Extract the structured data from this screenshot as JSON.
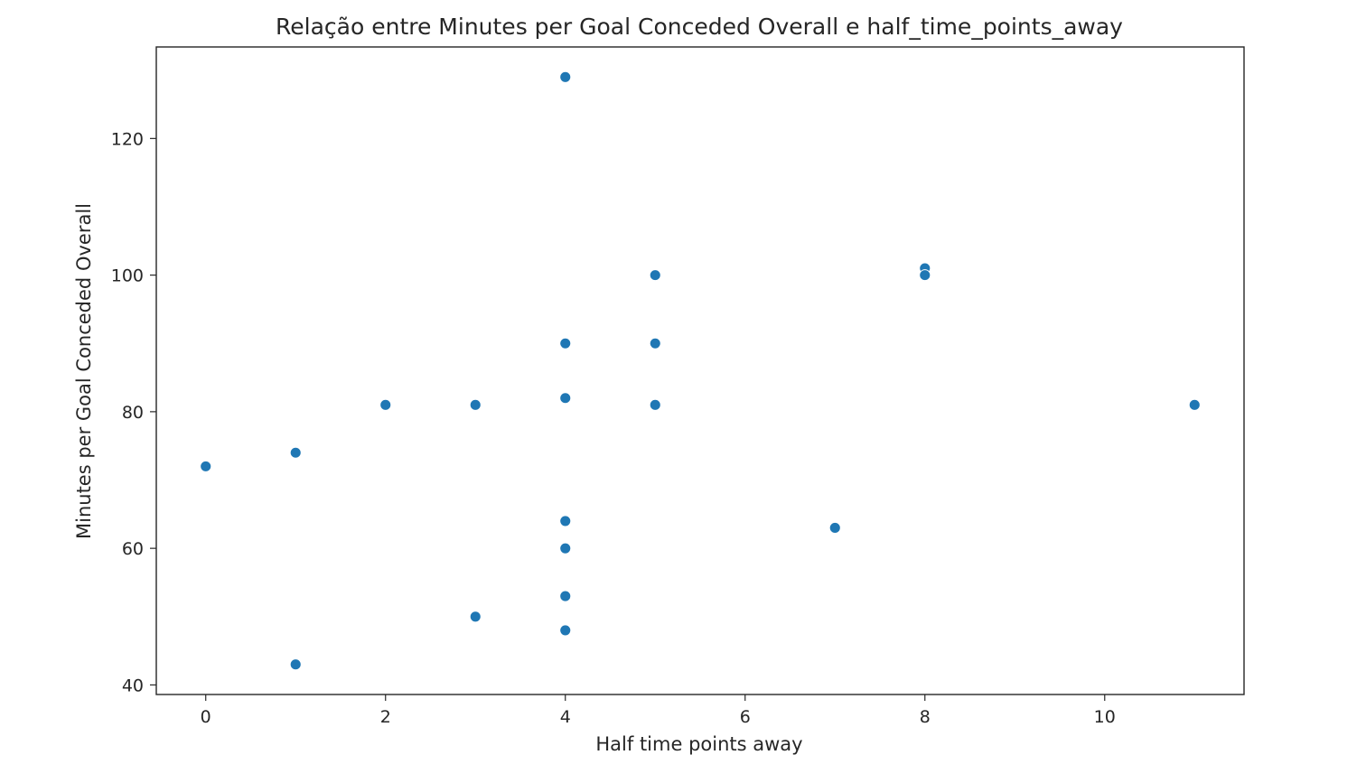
{
  "chart_data": {
    "type": "scatter",
    "title": "Relação entre Minutes per Goal Conceded Overall e half_time_points_away",
    "xlabel": "Half time points away",
    "ylabel": "Minutes per Goal Conceded Overall",
    "xlim": [
      -0.55,
      11.55
    ],
    "ylim": [
      38.6,
      133.4
    ],
    "xticks": [
      0,
      2,
      4,
      6,
      8,
      10
    ],
    "yticks": [
      40,
      60,
      80,
      100,
      120
    ],
    "grid": false,
    "marker_color": "#1f77b4",
    "points": [
      {
        "x": 0,
        "y": 72
      },
      {
        "x": 1,
        "y": 74
      },
      {
        "x": 1,
        "y": 43
      },
      {
        "x": 2,
        "y": 81
      },
      {
        "x": 3,
        "y": 81
      },
      {
        "x": 3,
        "y": 50
      },
      {
        "x": 4,
        "y": 129
      },
      {
        "x": 4,
        "y": 90
      },
      {
        "x": 4,
        "y": 82
      },
      {
        "x": 4,
        "y": 64
      },
      {
        "x": 4,
        "y": 60
      },
      {
        "x": 4,
        "y": 53
      },
      {
        "x": 4,
        "y": 48
      },
      {
        "x": 5,
        "y": 100
      },
      {
        "x": 5,
        "y": 90
      },
      {
        "x": 5,
        "y": 81
      },
      {
        "x": 7,
        "y": 63
      },
      {
        "x": 8,
        "y": 101
      },
      {
        "x": 8,
        "y": 100
      },
      {
        "x": 11,
        "y": 81
      }
    ]
  }
}
